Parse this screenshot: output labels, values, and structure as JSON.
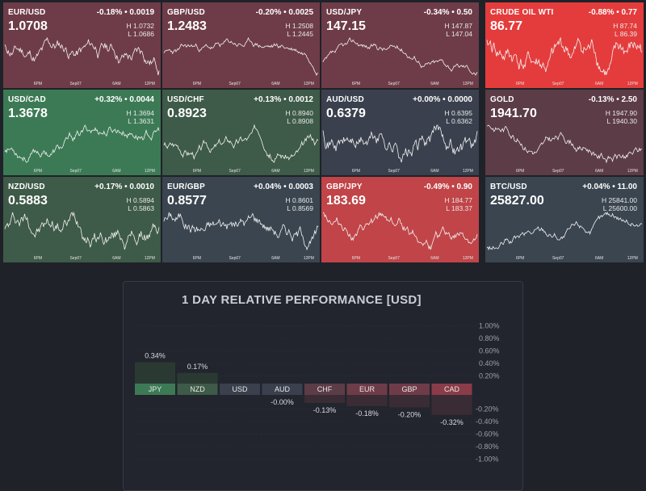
{
  "colors": {
    "background": "#1f2229",
    "positive_strong": "#3c7a55",
    "negative_strong": "#c04448",
    "red_bright": "#e43c3c",
    "muted_red": "#6e3c48",
    "neutral": "#3a404d",
    "dark_slate": "#3a4550",
    "green_dark": "#3e5a48"
  },
  "tiles": [
    {
      "symbol": "EUR/USD",
      "change": "-0.18% • 0.0019",
      "price": "1.0708",
      "high": "H 1.0732",
      "low": "L 1.0686",
      "bg": "#6e3c48",
      "ticks": [
        "6PM",
        "Sep07",
        "6AM",
        "12PM"
      ],
      "trend": -0.3,
      "seed": 11
    },
    {
      "symbol": "GBP/USD",
      "change": "-0.20% • 0.0025",
      "price": "1.2483",
      "high": "H 1.2508",
      "low": "L 1.2445",
      "bg": "#6e3c48",
      "ticks": [
        "6PM",
        "Sep07",
        "6AM",
        "12PM"
      ],
      "trend": -0.4,
      "seed": 23
    },
    {
      "symbol": "USD/JPY",
      "change": "-0.34% • 0.50",
      "price": "147.15",
      "high": "H 147.87",
      "low": "L 147.04",
      "bg": "#6e3c48",
      "ticks": [
        "6PM",
        "Sep07",
        "6AM",
        "12PM"
      ],
      "trend": -0.5,
      "seed": 37
    },
    {
      "symbol": "CRUDE OIL WTI",
      "change": "-0.88% • 0.77",
      "price": "86.77",
      "high": "H 87.74",
      "low": "L 86.39",
      "bg": "#e43c3c",
      "ticks": [
        "6PM",
        "Sep07",
        "6AM",
        "12PM"
      ],
      "trend": -0.4,
      "seed": 41
    },
    {
      "symbol": "USD/CAD",
      "change": "+0.32% • 0.0044",
      "price": "1.3678",
      "high": "H 1.3694",
      "low": "L 1.3631",
      "bg": "#3c7a55",
      "ticks": [
        "6PM",
        "Sep07",
        "6AM",
        "12PM"
      ],
      "trend": 0.7,
      "seed": 53
    },
    {
      "symbol": "USD/CHF",
      "change": "+0.13% • 0.0012",
      "price": "0.8923",
      "high": "H 0.8940",
      "low": "L 0.8908",
      "bg": "#3e5a48",
      "ticks": [
        "6PM",
        "Sep07",
        "6AM",
        "12PM"
      ],
      "trend": 0.4,
      "seed": 67
    },
    {
      "symbol": "AUD/USD",
      "change": "+0.00% • 0.0000",
      "price": "0.6379",
      "high": "H 0.6395",
      "low": "L 0.6362",
      "bg": "#3a404d",
      "ticks": [
        "6PM",
        "Sep07",
        "6AM",
        "12PM"
      ],
      "trend": 0.0,
      "seed": 71
    },
    {
      "symbol": "GOLD",
      "change": "-0.13% • 2.50",
      "price": "1941.70",
      "high": "H 1947.90",
      "low": "L 1940.30",
      "bg": "#5c3c46",
      "ticks": [
        "6PM",
        "Sep07",
        "6AM",
        "12PM"
      ],
      "trend": -0.1,
      "seed": 83
    },
    {
      "symbol": "NZD/USD",
      "change": "+0.17% • 0.0010",
      "price": "0.5883",
      "high": "H 0.5894",
      "low": "L 0.5863",
      "bg": "#3e5a48",
      "ticks": [
        "6PM",
        "Sep07",
        "6AM",
        "12PM"
      ],
      "trend": 0.5,
      "seed": 97
    },
    {
      "symbol": "EUR/GBP",
      "change": "+0.04% • 0.0003",
      "price": "0.8577",
      "high": "H 0.8601",
      "low": "L 0.8569",
      "bg": "#3a4550",
      "ticks": [
        "6PM",
        "Sep07",
        "6AM",
        "12PM"
      ],
      "trend": 0.1,
      "seed": 101
    },
    {
      "symbol": "GBP/JPY",
      "change": "-0.49% • 0.90",
      "price": "183.69",
      "high": "H 184.77",
      "low": "L 183.37",
      "bg": "#c04448",
      "ticks": [
        "6PM",
        "Sep07",
        "6AM",
        "12PM"
      ],
      "trend": -0.6,
      "seed": 113
    },
    {
      "symbol": "BTC/USD",
      "change": "+0.04% • 11.00",
      "price": "25827.00",
      "high": "H 25841.00",
      "low": "L 25600.00",
      "bg": "#3a4550",
      "ticks": [
        "6PM",
        "Sep07",
        "6AM",
        "12PM"
      ],
      "trend": 0.3,
      "seed": 127
    }
  ],
  "performance": {
    "title": "1 DAY RELATIVE PERFORMANCE  [USD]"
  },
  "chart_data": {
    "type": "bar",
    "title": "1 DAY RELATIVE PERFORMANCE  [USD]",
    "categories": [
      "JPY",
      "NZD",
      "USD",
      "AUD",
      "CHF",
      "EUR",
      "GBP",
      "CAD"
    ],
    "values": [
      0.34,
      0.17,
      0.0,
      -0.0,
      -0.13,
      -0.18,
      -0.2,
      -0.32
    ],
    "value_labels": [
      "0.34%",
      "0.17%",
      "",
      "-0.00%",
      "-0.13%",
      "-0.18%",
      "-0.20%",
      "-0.32%"
    ],
    "ylim": [
      -1.0,
      1.0
    ],
    "pos_ticks": [
      "1.00%",
      "0.80%",
      "0.60%",
      "0.40%",
      "0.20%"
    ],
    "neg_ticks": [
      "-0.20%",
      "-0.40%",
      "-0.60%",
      "-0.80%",
      "-1.00%"
    ],
    "label_colors": [
      "#3c7a55",
      "#3e5a48",
      "#3a404d",
      "#3a404d",
      "#5c3c46",
      "#6e3c48",
      "#6e3c48",
      "#8a3c48"
    ]
  }
}
